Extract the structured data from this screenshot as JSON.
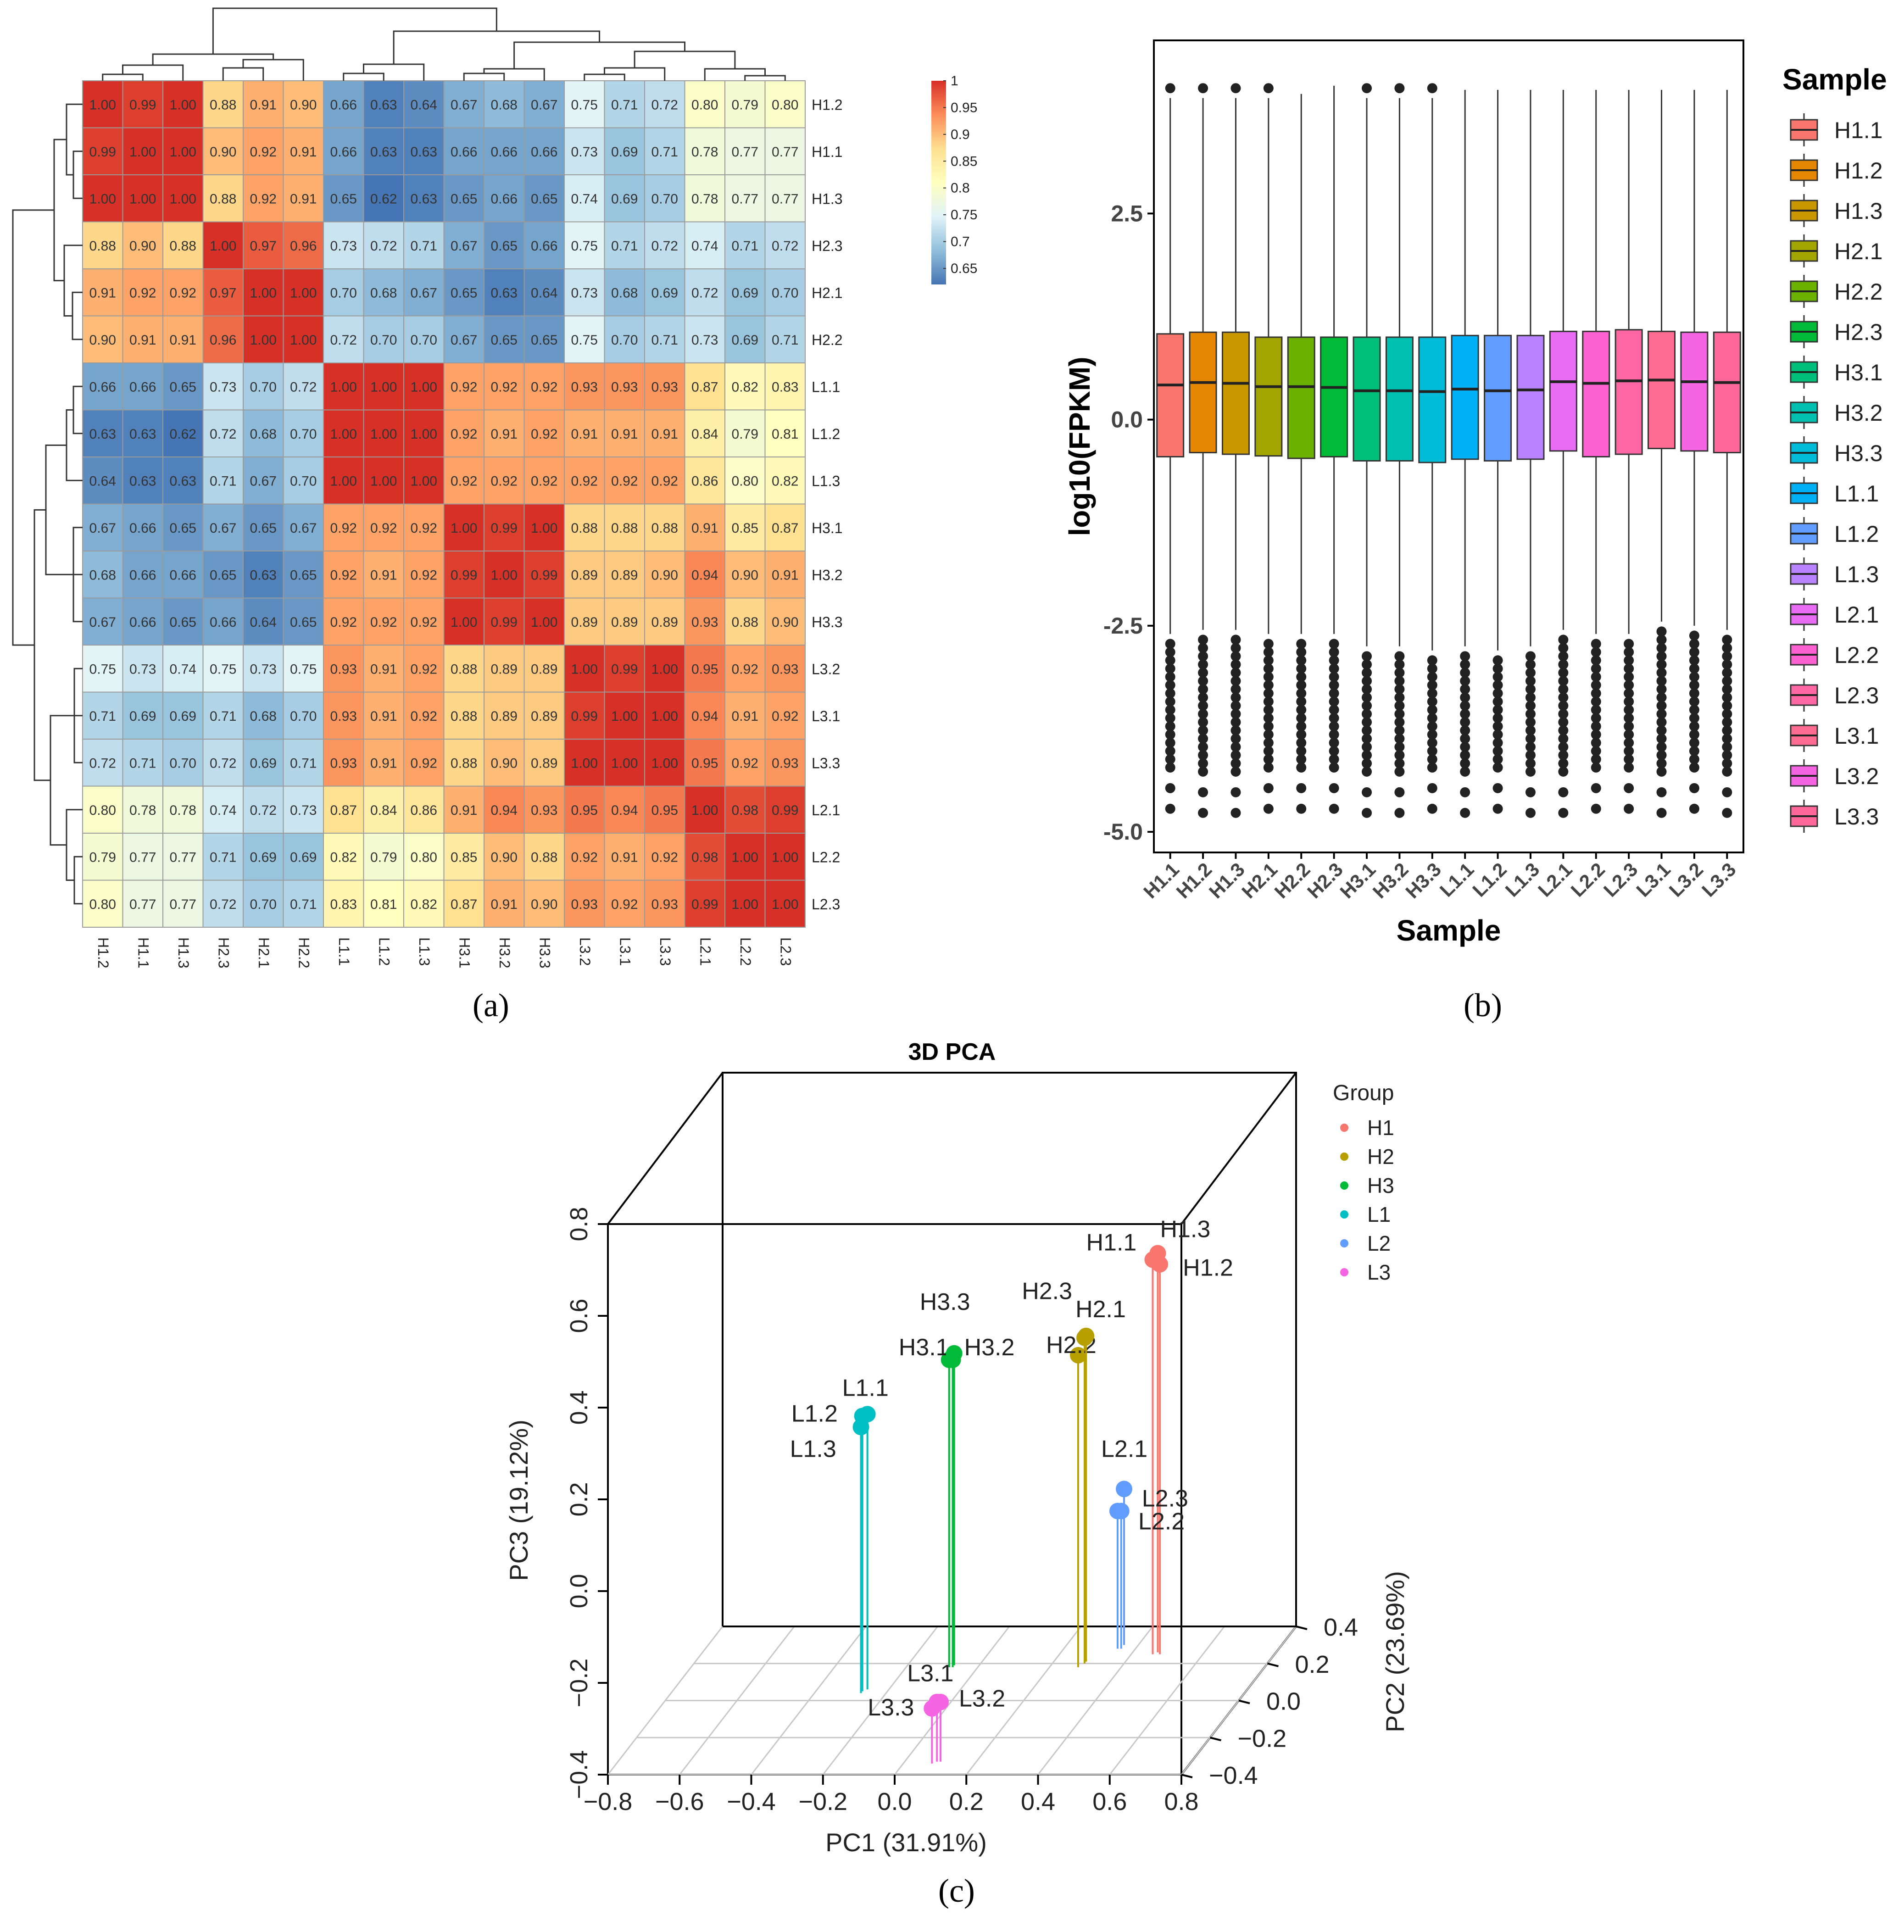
{
  "panels": {
    "a": "(a)",
    "b": "(b)",
    "c": "(c)"
  },
  "chart_data": [
    {
      "type": "heatmap",
      "panel": "(a)",
      "rows": [
        "H1.2",
        "H1.1",
        "H1.3",
        "H2.3",
        "H2.1",
        "H2.2",
        "L1.1",
        "L1.2",
        "L1.3",
        "H3.1",
        "H3.2",
        "H3.3",
        "L3.2",
        "L3.1",
        "L3.3",
        "L2.1",
        "L2.2",
        "L2.3"
      ],
      "cols": [
        "H1.2",
        "H1.1",
        "H1.3",
        "H2.3",
        "H2.1",
        "H2.2",
        "L1.1",
        "L1.2",
        "L1.3",
        "H3.1",
        "H3.2",
        "H3.3",
        "L3.2",
        "L3.1",
        "L3.3",
        "L2.1",
        "L2.2",
        "L2.3"
      ],
      "values": [
        [
          1.0,
          0.99,
          1.0,
          0.88,
          0.91,
          0.9,
          0.66,
          0.63,
          0.64,
          0.67,
          0.68,
          0.67,
          0.75,
          0.71,
          0.72,
          0.8,
          0.79,
          0.8
        ],
        [
          0.99,
          1.0,
          1.0,
          0.9,
          0.92,
          0.91,
          0.66,
          0.63,
          0.63,
          0.66,
          0.66,
          0.66,
          0.73,
          0.69,
          0.71,
          0.78,
          0.77,
          0.77
        ],
        [
          1.0,
          1.0,
          1.0,
          0.88,
          0.92,
          0.91,
          0.65,
          0.62,
          0.63,
          0.65,
          0.66,
          0.65,
          0.74,
          0.69,
          0.7,
          0.78,
          0.77,
          0.77
        ],
        [
          0.88,
          0.9,
          0.88,
          1.0,
          0.97,
          0.96,
          0.73,
          0.72,
          0.71,
          0.67,
          0.65,
          0.66,
          0.75,
          0.71,
          0.72,
          0.74,
          0.71,
          0.72
        ],
        [
          0.91,
          0.92,
          0.92,
          0.97,
          1.0,
          1.0,
          0.7,
          0.68,
          0.67,
          0.65,
          0.63,
          0.64,
          0.73,
          0.68,
          0.69,
          0.72,
          0.69,
          0.7
        ],
        [
          0.9,
          0.91,
          0.91,
          0.96,
          1.0,
          1.0,
          0.72,
          0.7,
          0.7,
          0.67,
          0.65,
          0.65,
          0.75,
          0.7,
          0.71,
          0.73,
          0.69,
          0.71
        ],
        [
          0.66,
          0.66,
          0.65,
          0.73,
          0.7,
          0.72,
          1.0,
          1.0,
          1.0,
          0.92,
          0.92,
          0.92,
          0.93,
          0.93,
          0.93,
          0.87,
          0.82,
          0.83
        ],
        [
          0.63,
          0.63,
          0.62,
          0.72,
          0.68,
          0.7,
          1.0,
          1.0,
          1.0,
          0.92,
          0.91,
          0.92,
          0.91,
          0.91,
          0.91,
          0.84,
          0.79,
          0.81
        ],
        [
          0.64,
          0.63,
          0.63,
          0.71,
          0.67,
          0.7,
          1.0,
          1.0,
          1.0,
          0.92,
          0.92,
          0.92,
          0.92,
          0.92,
          0.92,
          0.86,
          0.8,
          0.82
        ],
        [
          0.67,
          0.66,
          0.65,
          0.67,
          0.65,
          0.67,
          0.92,
          0.92,
          0.92,
          1.0,
          0.99,
          1.0,
          0.88,
          0.88,
          0.88,
          0.91,
          0.85,
          0.87
        ],
        [
          0.68,
          0.66,
          0.66,
          0.65,
          0.63,
          0.65,
          0.92,
          0.91,
          0.92,
          0.99,
          1.0,
          0.99,
          0.89,
          0.89,
          0.9,
          0.94,
          0.9,
          0.91
        ],
        [
          0.67,
          0.66,
          0.65,
          0.66,
          0.64,
          0.65,
          0.92,
          0.92,
          0.92,
          1.0,
          0.99,
          1.0,
          0.89,
          0.89,
          0.89,
          0.93,
          0.88,
          0.9
        ],
        [
          0.75,
          0.73,
          0.74,
          0.75,
          0.73,
          0.75,
          0.93,
          0.91,
          0.92,
          0.88,
          0.89,
          0.89,
          1.0,
          0.99,
          1.0,
          0.95,
          0.92,
          0.93
        ],
        [
          0.71,
          0.69,
          0.69,
          0.71,
          0.68,
          0.7,
          0.93,
          0.91,
          0.92,
          0.88,
          0.89,
          0.89,
          0.99,
          1.0,
          1.0,
          0.94,
          0.91,
          0.92
        ],
        [
          0.72,
          0.71,
          0.7,
          0.72,
          0.69,
          0.71,
          0.93,
          0.91,
          0.92,
          0.88,
          0.9,
          0.89,
          1.0,
          1.0,
          1.0,
          0.95,
          0.92,
          0.93
        ],
        [
          0.8,
          0.78,
          0.78,
          0.74,
          0.72,
          0.73,
          0.87,
          0.84,
          0.86,
          0.91,
          0.94,
          0.93,
          0.95,
          0.94,
          0.95,
          1.0,
          0.98,
          0.99
        ],
        [
          0.79,
          0.77,
          0.77,
          0.71,
          0.69,
          0.69,
          0.82,
          0.79,
          0.8,
          0.85,
          0.9,
          0.88,
          0.92,
          0.91,
          0.92,
          0.98,
          1.0,
          1.0
        ],
        [
          0.8,
          0.77,
          0.77,
          0.72,
          0.7,
          0.71,
          0.83,
          0.81,
          0.82,
          0.87,
          0.91,
          0.9,
          0.93,
          0.92,
          0.93,
          0.99,
          1.0,
          1.0
        ]
      ],
      "colorbar": {
        "ticks": [
          "1",
          "0.95",
          "0.9",
          "0.85",
          "0.8",
          "0.75",
          "0.7",
          "0.65"
        ],
        "tick_values": [
          1.0,
          0.95,
          0.9,
          0.85,
          0.8,
          0.75,
          0.7,
          0.65
        ],
        "range": [
          0.62,
          1.0
        ],
        "colors": [
          "#4575b4",
          "#91bfdb",
          "#e0f3f8",
          "#ffffbf",
          "#fee090",
          "#fc8d59",
          "#d73027"
        ]
      }
    },
    {
      "type": "box",
      "panel": "(b)",
      "xlabel": "Sample",
      "ylabel": "log10(FPKM)",
      "yticks": [
        "2.5",
        "0.0",
        "-2.5",
        "-5.0"
      ],
      "ytick_values": [
        2.5,
        0.0,
        -2.5,
        -5.0
      ],
      "ylim": [
        -5.25,
        4.6
      ],
      "legend_title": "Sample",
      "series": [
        {
          "name": "H1.1",
          "color": "#F8766D",
          "q1": -0.45,
          "median": 0.42,
          "q3": 1.04,
          "wmin": -2.6,
          "wmax": 3.9
        },
        {
          "name": "H1.2",
          "color": "#E58700",
          "q1": -0.4,
          "median": 0.45,
          "q3": 1.06,
          "wmin": -2.55,
          "wmax": 3.9
        },
        {
          "name": "H1.3",
          "color": "#C99800",
          "q1": -0.42,
          "median": 0.44,
          "q3": 1.06,
          "wmin": -2.55,
          "wmax": 3.9
        },
        {
          "name": "H2.1",
          "color": "#A3A500",
          "q1": -0.44,
          "median": 0.4,
          "q3": 1.0,
          "wmin": -2.6,
          "wmax": 3.9
        },
        {
          "name": "H2.2",
          "color": "#6BB100",
          "q1": -0.47,
          "median": 0.4,
          "q3": 1.0,
          "wmin": -2.6,
          "wmax": 3.95
        },
        {
          "name": "H2.3",
          "color": "#00BA38",
          "q1": -0.45,
          "median": 0.39,
          "q3": 1.0,
          "wmin": -2.6,
          "wmax": 4.05
        },
        {
          "name": "H3.1",
          "color": "#00BF7D",
          "q1": -0.5,
          "median": 0.35,
          "q3": 1.0,
          "wmin": -2.75,
          "wmax": 3.9
        },
        {
          "name": "H3.2",
          "color": "#00C0AF",
          "q1": -0.5,
          "median": 0.35,
          "q3": 1.0,
          "wmin": -2.75,
          "wmax": 3.9
        },
        {
          "name": "H3.3",
          "color": "#00BCD8",
          "q1": -0.52,
          "median": 0.34,
          "q3": 1.0,
          "wmin": -2.8,
          "wmax": 3.9
        },
        {
          "name": "L1.1",
          "color": "#00B0F6",
          "q1": -0.48,
          "median": 0.37,
          "q3": 1.02,
          "wmin": -2.75,
          "wmax": 4.0
        },
        {
          "name": "L1.2",
          "color": "#619CFF",
          "q1": -0.5,
          "median": 0.35,
          "q3": 1.02,
          "wmin": -2.8,
          "wmax": 4.0
        },
        {
          "name": "L1.3",
          "color": "#B983FF",
          "q1": -0.48,
          "median": 0.36,
          "q3": 1.02,
          "wmin": -2.75,
          "wmax": 4.0
        },
        {
          "name": "L2.1",
          "color": "#E76BF3",
          "q1": -0.38,
          "median": 0.46,
          "q3": 1.07,
          "wmin": -2.55,
          "wmax": 4.0
        },
        {
          "name": "L2.2",
          "color": "#FD61D1",
          "q1": -0.45,
          "median": 0.44,
          "q3": 1.07,
          "wmin": -2.6,
          "wmax": 4.0
        },
        {
          "name": "L2.3",
          "color": "#FF67A4",
          "q1": -0.42,
          "median": 0.47,
          "q3": 1.09,
          "wmin": -2.6,
          "wmax": 4.0
        },
        {
          "name": "L3.1",
          "color": "#FF6C91",
          "q1": -0.35,
          "median": 0.48,
          "q3": 1.07,
          "wmin": -2.45,
          "wmax": 4.0
        },
        {
          "name": "L3.2",
          "color": "#F564E3",
          "q1": -0.38,
          "median": 0.46,
          "q3": 1.06,
          "wmin": -2.5,
          "wmax": 4.0
        },
        {
          "name": "L3.3",
          "color": "#FF6699",
          "q1": -0.4,
          "median": 0.45,
          "q3": 1.06,
          "wmin": -2.55,
          "wmax": 4.0
        }
      ]
    },
    {
      "type": "scatter",
      "panel": "(c)",
      "title": "3D PCA",
      "xlabel": "PC1 (31.91%)",
      "ylabel": "PC3 (19.12%)",
      "zlabel": "PC2 (23.69%)",
      "xticks": [
        "−0.8",
        "−0.6",
        "−0.4",
        "−0.2",
        "0.0",
        "0.2",
        "0.4",
        "0.6",
        "0.8"
      ],
      "yticks": [
        "0.8",
        "0.6",
        "0.4",
        "0.2",
        "0.0",
        "−0.2",
        "−0.4"
      ],
      "zticks": [
        "0.4",
        "0.2",
        "0.0",
        "−0.2",
        "−0.4"
      ],
      "legend_title": "Group",
      "groups": [
        {
          "name": "H1",
          "color": "#F8766D"
        },
        {
          "name": "H2",
          "color": "#B79F00"
        },
        {
          "name": "H3",
          "color": "#00BA38"
        },
        {
          "name": "L1",
          "color": "#00BFC4"
        },
        {
          "name": "L2",
          "color": "#619CFF"
        },
        {
          "name": "L3",
          "color": "#F564E3"
        }
      ],
      "points": [
        {
          "label": "H1.1",
          "group": "H1",
          "pc1": 0.46,
          "pc2": 0.25,
          "pc3": 0.46
        },
        {
          "label": "H1.2",
          "group": "H1",
          "pc1": 0.48,
          "pc2": 0.25,
          "pc3": 0.45
        },
        {
          "label": "H1.3",
          "group": "H1",
          "pc1": 0.47,
          "pc2": 0.26,
          "pc3": 0.47
        },
        {
          "label": "H2.1",
          "group": "H2",
          "pc1": 0.29,
          "pc2": 0.2,
          "pc3": 0.31
        },
        {
          "label": "H2.2",
          "group": "H2",
          "pc1": 0.28,
          "pc2": 0.18,
          "pc3": 0.28
        },
        {
          "label": "H2.3",
          "group": "H2",
          "pc1": 0.29,
          "pc2": 0.21,
          "pc3": 0.31
        },
        {
          "label": "H3.1",
          "group": "H3",
          "pc1": -0.08,
          "pc2": 0.18,
          "pc3": 0.27
        },
        {
          "label": "H3.2",
          "group": "H3",
          "pc1": -0.07,
          "pc2": 0.18,
          "pc3": 0.27
        },
        {
          "label": "H3.3",
          "group": "H3",
          "pc1": -0.07,
          "pc2": 0.19,
          "pc3": 0.28
        },
        {
          "label": "L1.1",
          "group": "L1",
          "pc1": -0.26,
          "pc2": 0.06,
          "pc3": 0.2
        },
        {
          "label": "L1.2",
          "group": "L1",
          "pc1": -0.27,
          "pc2": 0.05,
          "pc3": 0.2
        },
        {
          "label": "L1.3",
          "group": "L1",
          "pc1": -0.27,
          "pc2": 0.04,
          "pc3": 0.18
        },
        {
          "label": "L2.1",
          "group": "L2",
          "pc1": 0.36,
          "pc2": 0.3,
          "pc3": -0.06
        },
        {
          "label": "L2.2",
          "group": "L2",
          "pc1": 0.35,
          "pc2": 0.28,
          "pc3": -0.1
        },
        {
          "label": "L2.3",
          "group": "L2",
          "pc1": 0.36,
          "pc2": 0.28,
          "pc3": -0.1
        },
        {
          "label": "L3.1",
          "group": "L3",
          "pc1": 0.09,
          "pc2": -0.33,
          "pc3": -0.27
        },
        {
          "label": "L3.2",
          "group": "L3",
          "pc1": 0.1,
          "pc2": -0.33,
          "pc3": -0.27
        },
        {
          "label": "L3.3",
          "group": "L3",
          "pc1": 0.08,
          "pc2": -0.34,
          "pc3": -0.28
        }
      ]
    }
  ]
}
